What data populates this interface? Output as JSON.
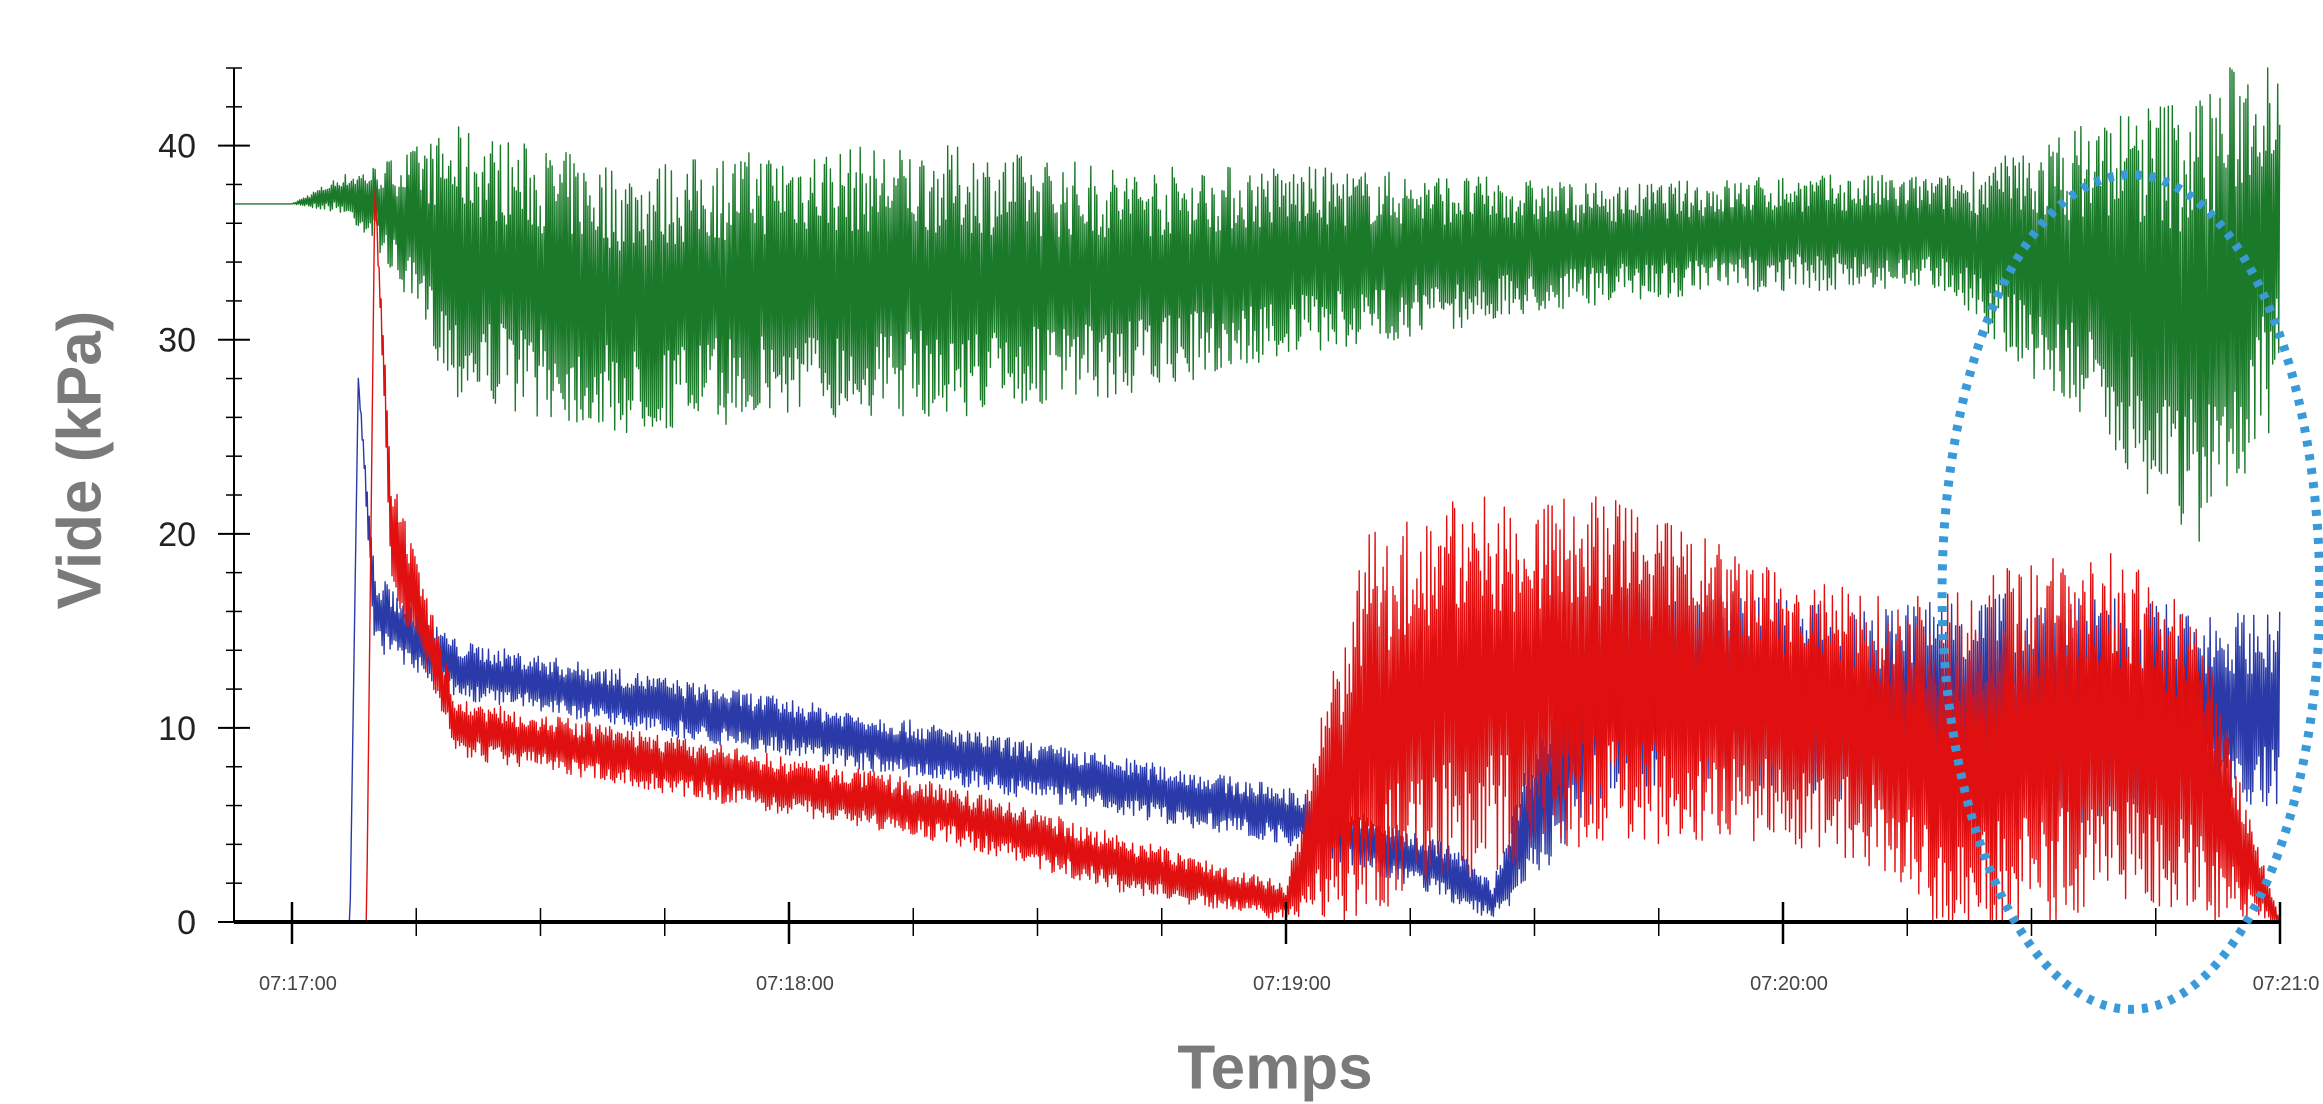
{
  "chart_data": {
    "type": "line",
    "title": "",
    "xlabel": "Temps",
    "ylabel": "Vide (kPa)",
    "xlim": [
      "07:16:53",
      "07:21:00"
    ],
    "ylim": [
      0,
      44
    ],
    "y_ticks": [
      0,
      10,
      20,
      30,
      40
    ],
    "x_ticks": [
      "07:17:00",
      "07:18:00",
      "07:19:00",
      "07:20:00",
      "07:21:0"
    ],
    "grid": false,
    "legend": "none",
    "series": [
      {
        "color": "#1a7a2a",
        "x": [
          "07:16:53",
          "07:17:00",
          "07:17:06",
          "07:17:10",
          "07:17:20",
          "07:17:40",
          "07:18:00",
          "07:18:20",
          "07:18:40",
          "07:19:00",
          "07:19:20",
          "07:19:40",
          "07:20:00",
          "07:20:10",
          "07:20:20",
          "07:20:30",
          "07:20:40",
          "07:20:50",
          "07:21:00"
        ],
        "values": [
          37,
          37,
          37.5,
          37,
          34,
          32,
          33,
          33,
          33,
          34,
          34.5,
          35,
          35.5,
          35.5,
          35.5,
          34,
          33,
          31,
          36
        ],
        "spread": [
          0,
          0,
          1,
          2,
          7,
          7,
          7,
          7,
          6,
          5,
          4,
          3,
          3,
          3,
          3,
          6,
          9,
          12,
          10
        ]
      },
      {
        "color": "#2a3aa8",
        "x": [
          "07:16:53",
          "07:17:00",
          "07:17:07",
          "07:17:08",
          "07:17:10",
          "07:17:20",
          "07:17:40",
          "07:18:00",
          "07:18:20",
          "07:18:40",
          "07:19:00",
          "07:19:10",
          "07:19:20",
          "07:19:25",
          "07:19:30",
          "07:19:40",
          "07:20:00",
          "07:20:10",
          "07:20:20",
          "07:20:30",
          "07:20:40",
          "07:20:50",
          "07:21:00"
        ],
        "values": [
          0,
          0,
          0,
          28,
          16,
          13,
          11.5,
          10,
          8.5,
          7,
          5.5,
          4,
          2.5,
          1,
          6,
          12,
          12,
          11,
          11,
          11,
          11,
          11,
          11
        ],
        "spread": [
          0,
          0,
          0,
          0,
          2,
          1.5,
          1.5,
          1.5,
          1.5,
          1.5,
          1.5,
          1.5,
          1.5,
          1,
          4,
          5,
          5,
          5,
          6,
          6,
          6,
          5,
          5
        ]
      },
      {
        "color": "#e01010",
        "x": [
          "07:16:53",
          "07:17:00",
          "07:17:09",
          "07:17:10",
          "07:17:12",
          "07:17:20",
          "07:17:40",
          "07:18:00",
          "07:18:20",
          "07:18:40",
          "07:19:00",
          "07:19:05",
          "07:19:10",
          "07:19:20",
          "07:19:40",
          "07:20:00",
          "07:20:10",
          "07:20:20",
          "07:20:30",
          "07:20:40",
          "07:20:50",
          "07:21:00"
        ],
        "values": [
          0,
          0,
          0,
          38,
          20,
          10,
          8.5,
          7,
          5.5,
          3,
          1,
          6,
          10,
          12,
          13,
          11,
          10,
          8,
          9,
          10,
          8,
          0
        ],
        "spread": [
          0,
          0,
          0,
          0,
          3,
          1.5,
          1.5,
          1.5,
          1.5,
          1.5,
          1,
          6,
          10,
          10,
          9,
          7,
          7,
          9,
          10,
          9,
          8,
          0
        ]
      }
    ],
    "annotations": [
      {
        "type": "dotted-ellipse",
        "color": "#3a9ad9",
        "center": [
          "07:20:42",
          17
        ],
        "rx_minutes": 0.38,
        "ry_kpa": 21.5
      }
    ]
  }
}
